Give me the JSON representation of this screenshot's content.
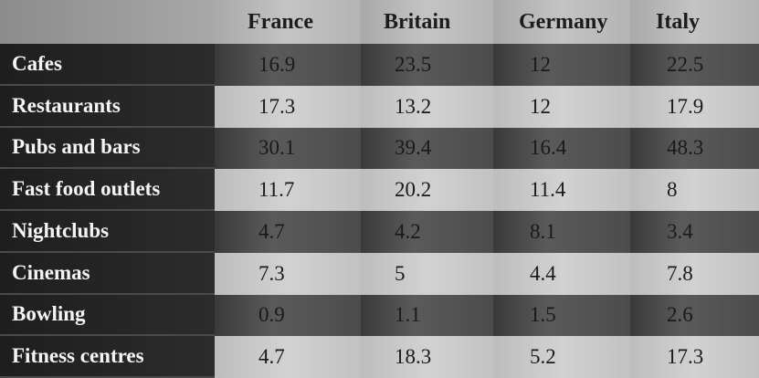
{
  "table": {
    "columns": [
      "France",
      "Britain",
      "Germany",
      "Italy"
    ],
    "rows": [
      {
        "label": "Cafes",
        "values": [
          16.9,
          23.5,
          12,
          22.5
        ]
      },
      {
        "label": "Restaurants",
        "values": [
          17.3,
          13.2,
          12,
          17.9
        ]
      },
      {
        "label": "Pubs and bars",
        "values": [
          30.1,
          39.4,
          16.4,
          48.3
        ]
      },
      {
        "label": "Fast food outlets",
        "values": [
          11.7,
          20.2,
          11.4,
          8
        ]
      },
      {
        "label": "Nightclubs",
        "values": [
          4.7,
          4.2,
          8.1,
          3.4
        ]
      },
      {
        "label": "Cinemas",
        "values": [
          7.3,
          5,
          4.4,
          7.8
        ]
      },
      {
        "label": "Bowling",
        "values": [
          0.9,
          1.1,
          1.5,
          2.6
        ]
      },
      {
        "label": "Fitness centres",
        "values": [
          4.7,
          18.3,
          5.2,
          17.3
        ]
      }
    ]
  }
}
